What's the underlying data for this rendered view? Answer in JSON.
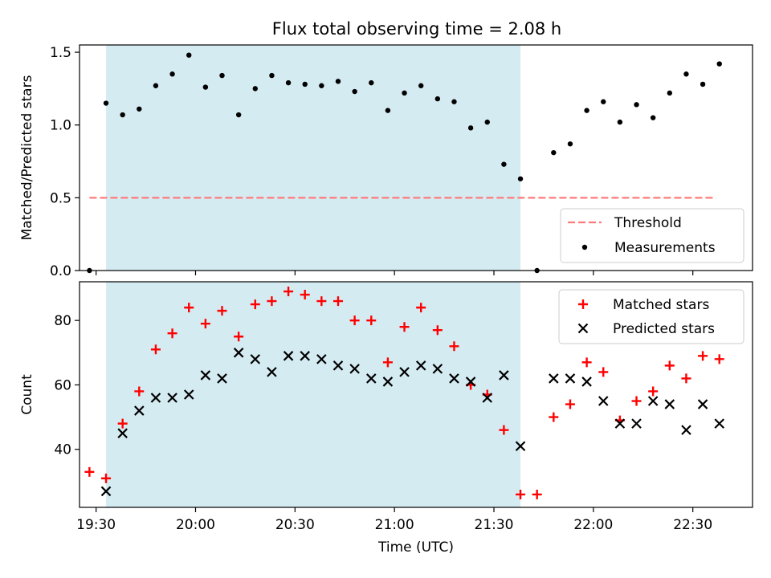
{
  "title": "Flux total observing time = 2.08 h",
  "colors": {
    "shade": "#ADD8E6",
    "matched": "#FF0000",
    "predicted": "#000000",
    "threshold": "#FF7B7B"
  },
  "chart_data": [
    {
      "type": "scatter",
      "title": "Flux total observing time = 2.08 h",
      "ylabel": "Matched/Predicted stars",
      "xlim": [
        "19:25",
        "22:48"
      ],
      "ylim": [
        0,
        1.55
      ],
      "yticks": [
        "0.0",
        "0.5",
        "1.0",
        "1.5"
      ],
      "shaded_interval": [
        "19:33",
        "21:38"
      ],
      "threshold": {
        "name": "Threshold",
        "value": 0.5,
        "x_range": [
          "19:28",
          "22:37"
        ]
      },
      "legend": {
        "position": "lower right",
        "entries": [
          "Threshold",
          "Measurements"
        ]
      },
      "series": [
        {
          "name": "Measurements",
          "x": [
            "19:28",
            "19:33",
            "19:38",
            "19:43",
            "19:48",
            "19:53",
            "19:58",
            "20:03",
            "20:08",
            "20:13",
            "20:18",
            "20:23",
            "20:28",
            "20:33",
            "20:38",
            "20:43",
            "20:48",
            "20:53",
            "20:58",
            "21:03",
            "21:08",
            "21:13",
            "21:18",
            "21:23",
            "21:28",
            "21:33",
            "21:38",
            "21:43",
            "21:48",
            "21:53",
            "21:58",
            "22:03",
            "22:08",
            "22:13",
            "22:18",
            "22:23",
            "22:28",
            "22:33",
            "22:38"
          ],
          "y": [
            0.0,
            1.15,
            1.07,
            1.11,
            1.27,
            1.35,
            1.48,
            1.26,
            1.34,
            1.07,
            1.25,
            1.34,
            1.29,
            1.28,
            1.27,
            1.3,
            1.23,
            1.29,
            1.1,
            1.22,
            1.27,
            1.18,
            1.16,
            0.98,
            1.02,
            0.73,
            0.63,
            0.0,
            0.81,
            0.87,
            1.1,
            1.16,
            1.02,
            1.14,
            1.05,
            1.22,
            1.35,
            1.28,
            1.42
          ]
        }
      ]
    },
    {
      "type": "scatter",
      "xlabel": "Time (UTC)",
      "ylabel": "Count",
      "xlim": [
        "19:25",
        "22:48"
      ],
      "ylim": [
        22,
        92
      ],
      "xticks": [
        "19:30",
        "20:00",
        "20:30",
        "21:00",
        "21:30",
        "22:00",
        "22:30"
      ],
      "yticks": [
        "40",
        "60",
        "80"
      ],
      "shaded_interval": [
        "19:33",
        "21:38"
      ],
      "legend": {
        "position": "upper right",
        "entries": [
          "Matched stars",
          "Predicted stars"
        ]
      },
      "series": [
        {
          "name": "Matched stars",
          "marker": "plus",
          "x": [
            "19:28",
            "19:33",
            "19:38",
            "19:43",
            "19:48",
            "19:53",
            "19:58",
            "20:03",
            "20:08",
            "20:13",
            "20:18",
            "20:23",
            "20:28",
            "20:33",
            "20:38",
            "20:43",
            "20:48",
            "20:53",
            "20:58",
            "21:03",
            "21:08",
            "21:13",
            "21:18",
            "21:23",
            "21:28",
            "21:33",
            "21:38",
            "21:43",
            "21:48",
            "21:53",
            "21:58",
            "22:03",
            "22:08",
            "22:13",
            "22:18",
            "22:23",
            "22:28",
            "22:33",
            "22:38"
          ],
          "y": [
            33,
            31,
            48,
            58,
            71,
            76,
            84,
            79,
            83,
            75,
            85,
            86,
            89,
            88,
            86,
            86,
            80,
            80,
            67,
            78,
            84,
            77,
            72,
            60,
            57,
            46,
            26,
            26,
            50,
            54,
            67,
            64,
            49,
            55,
            58,
            66,
            62,
            69,
            68
          ]
        },
        {
          "name": "Predicted stars",
          "marker": "x",
          "x": [
            "19:33",
            "19:38",
            "19:43",
            "19:48",
            "19:53",
            "19:58",
            "20:03",
            "20:08",
            "20:13",
            "20:18",
            "20:23",
            "20:28",
            "20:33",
            "20:38",
            "20:43",
            "20:48",
            "20:53",
            "20:58",
            "21:03",
            "21:08",
            "21:13",
            "21:18",
            "21:23",
            "21:28",
            "21:33",
            "21:38",
            "21:48",
            "21:53",
            "21:58",
            "22:03",
            "22:08",
            "22:13",
            "22:18",
            "22:23",
            "22:28",
            "22:33",
            "22:38"
          ],
          "y": [
            27,
            45,
            52,
            56,
            56,
            57,
            63,
            62,
            70,
            68,
            64,
            69,
            69,
            68,
            66,
            65,
            62,
            61,
            64,
            66,
            65,
            62,
            61,
            56,
            63,
            41,
            62,
            62,
            61,
            55,
            48,
            48,
            55,
            54,
            46,
            54,
            48
          ]
        }
      ]
    }
  ]
}
